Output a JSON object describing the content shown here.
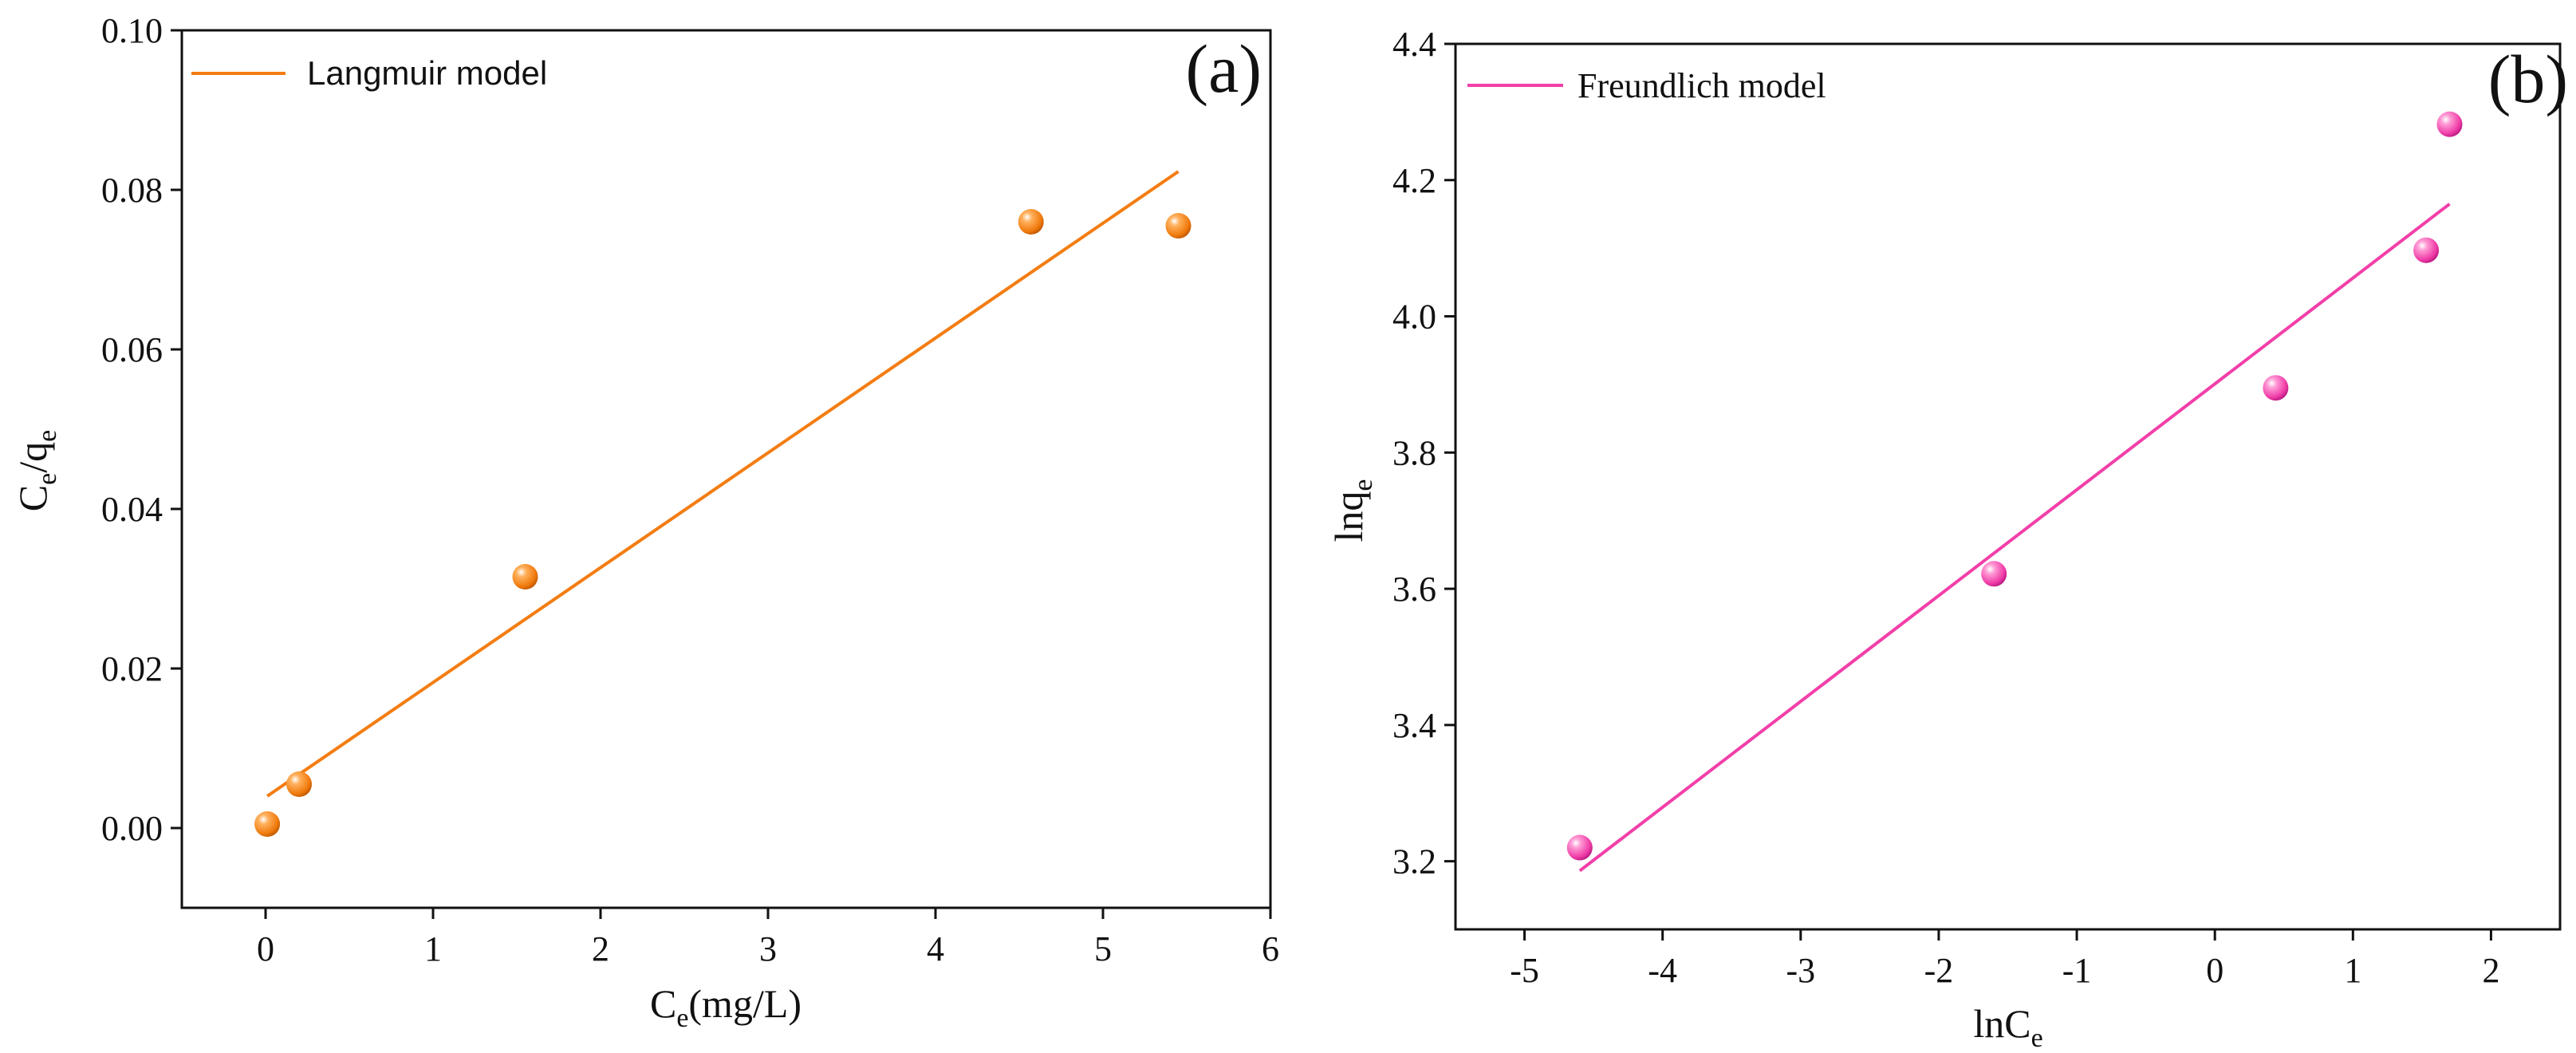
{
  "chart_data": [
    {
      "panel_label": "(a)",
      "type": "scatter",
      "title": "",
      "xlabel": {
        "main": "C",
        "sub": "e",
        "rest": "(mg/L)"
      },
      "ylabel": {
        "parts": [
          {
            "t": "C"
          },
          {
            "t": "e",
            "sub": true
          },
          {
            "t": "/q"
          },
          {
            "t": "e",
            "sub": true
          }
        ]
      },
      "xlim": [
        -0.5,
        6
      ],
      "ylim": [
        -0.01,
        0.1
      ],
      "xticks": [
        0,
        1,
        2,
        3,
        4,
        5,
        6
      ],
      "xtick_labels": [
        "0",
        "1",
        "2",
        "3",
        "4",
        "5",
        "6"
      ],
      "yticks": [
        0,
        0.02,
        0.04,
        0.06,
        0.08,
        0.1
      ],
      "ytick_labels": [
        "0.00",
        "0.02",
        "0.04",
        "0.06",
        "0.08",
        "0.10"
      ],
      "grid": false,
      "legend": {
        "label": "Langmuir model",
        "position": "top-left"
      },
      "points": [
        {
          "x": 0.01,
          "y": 0.0005
        },
        {
          "x": 0.2,
          "y": 0.0055
        },
        {
          "x": 1.55,
          "y": 0.0315
        },
        {
          "x": 4.57,
          "y": 0.076
        },
        {
          "x": 5.45,
          "y": 0.0755
        }
      ],
      "fit_line": {
        "x": [
          0.01,
          5.45
        ],
        "y": [
          0.004,
          0.0823
        ]
      },
      "color": "#f47c11"
    },
    {
      "panel_label": "(b)",
      "type": "scatter",
      "title": "",
      "xlabel": {
        "main": "lnC",
        "sub": "e",
        "rest": ""
      },
      "ylabel": {
        "parts": [
          {
            "t": "lnq"
          },
          {
            "t": "e",
            "sub": true
          }
        ]
      },
      "xlim": [
        -5.5,
        2.5
      ],
      "ylim": [
        3.1,
        4.4
      ],
      "xticks": [
        -5,
        -4,
        -3,
        -2,
        -1,
        0,
        1,
        2
      ],
      "xtick_labels": [
        "-5",
        "-4",
        "-3",
        "-2",
        "-1",
        "0",
        "1",
        "2"
      ],
      "yticks": [
        3.2,
        3.4,
        3.6,
        3.8,
        4.0,
        4.2,
        4.4
      ],
      "ytick_labels": [
        "3.2",
        "3.4",
        "3.6",
        "3.8",
        "4.0",
        "4.2",
        "4.4"
      ],
      "grid": false,
      "legend": {
        "label": "Freundlich model",
        "position": "top-left"
      },
      "points": [
        {
          "x": -4.6,
          "y": 3.22
        },
        {
          "x": -1.6,
          "y": 3.622
        },
        {
          "x": 0.44,
          "y": 3.895
        },
        {
          "x": 1.53,
          "y": 4.097
        },
        {
          "x": 1.7,
          "y": 4.282
        }
      ],
      "fit_line": {
        "x": [
          -4.6,
          1.7
        ],
        "y": [
          3.186,
          4.165
        ]
      },
      "color": "#f23fa9"
    }
  ]
}
